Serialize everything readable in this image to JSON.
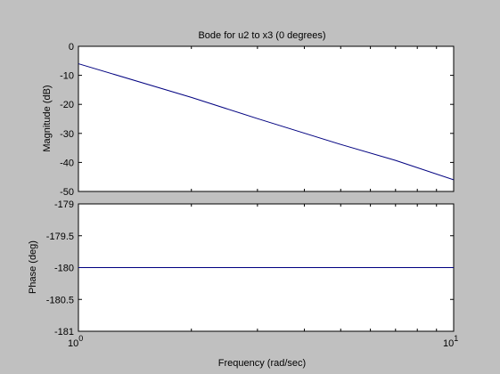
{
  "figure": {
    "background": "#c0c0c0",
    "axes_background": "#ffffff",
    "line_color": "#000080"
  },
  "chart_data": [
    {
      "type": "line",
      "title": "Bode for u2 to x3 (0 degrees)",
      "xlabel": "",
      "ylabel": "Magnitude (dB)",
      "xscale": "log",
      "xlim": [
        1,
        10
      ],
      "ylim": [
        -50,
        0
      ],
      "yticks": [
        0,
        -10,
        -20,
        -30,
        -40,
        -50
      ],
      "yticklabels": [
        "0",
        "-10",
        "-20",
        "-30",
        "-40",
        "-50"
      ],
      "grid": false,
      "series": [
        {
          "x": [
            1,
            2,
            3,
            5,
            7,
            10
          ],
          "values": [
            -6,
            -17.6,
            -24.9,
            -33.8,
            -39.3,
            -46
          ]
        }
      ]
    },
    {
      "type": "line",
      "title": "",
      "xlabel": "Frequency  (rad/sec)",
      "ylabel": "Phase (deg)",
      "xscale": "log",
      "xlim": [
        1,
        10
      ],
      "ylim": [
        -181,
        -179
      ],
      "yticks": [
        -179,
        -179.5,
        -180,
        -180.5,
        -181
      ],
      "yticklabels": [
        "-179",
        "-179.5",
        "-180",
        "-180.5",
        "-181"
      ],
      "xticklabels": [
        "10",
        "10"
      ],
      "xtick_exponents": [
        "0",
        "1"
      ],
      "grid": false,
      "series": [
        {
          "x": [
            1,
            10
          ],
          "values": [
            -180,
            -180
          ]
        }
      ]
    }
  ]
}
